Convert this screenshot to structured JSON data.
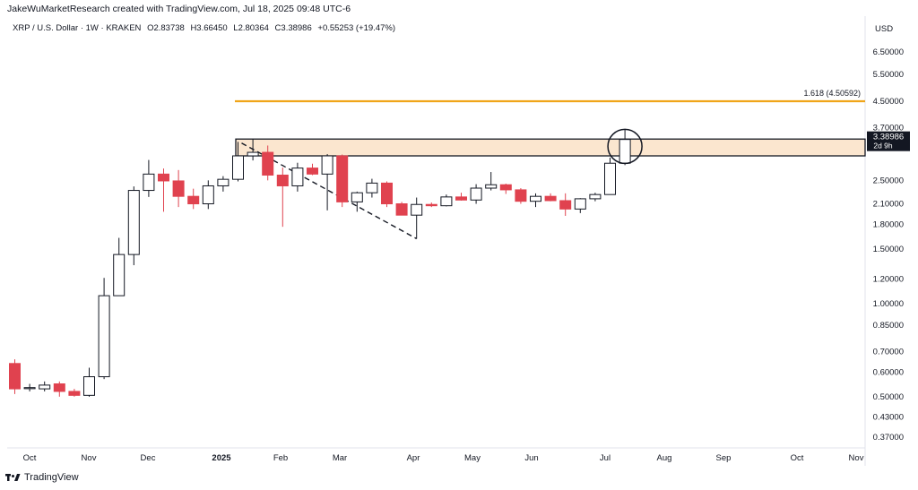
{
  "header": {
    "attribution": "JakeWuMarketResearch created with TradingView.com, Jul 18, 2025 09:48 UTC-6"
  },
  "legend": {
    "symbol": "XRP / U.S. Dollar · 1W · KRAKEN",
    "open": "O2.83738",
    "high": "H3.66450",
    "low": "L2.80364",
    "close": "C3.38986",
    "change": "+0.55253 (+19.47%)"
  },
  "price_axis": {
    "currency": "USD",
    "current_price": "3.38986",
    "countdown": "2d 9h"
  },
  "footer": {
    "brand": "TradingView"
  },
  "colors": {
    "up": "#ffffff",
    "down": "#e0424f",
    "fib_line": "#f0a519",
    "zone_fill": "#fbe6cf"
  },
  "chart_data": {
    "type": "candlestick",
    "symbol": "XRP/USD",
    "interval": "1W",
    "y_scale": "log",
    "ylim": [
      0.33,
      8.2
    ],
    "yticks": [
      "6.50000",
      "5.50000",
      "4.50000",
      "3.70000",
      "2.50000",
      "2.10000",
      "1.80000",
      "1.50000",
      "1.20000",
      "1.00000",
      "0.85000",
      "0.70000",
      "0.60000",
      "0.50000",
      "0.43000",
      "0.37000"
    ],
    "xticks": [
      "Oct",
      "Nov",
      "Dec",
      "2025",
      "Feb",
      "Mar",
      "Apr",
      "May",
      "Jun",
      "Jul",
      "Aug",
      "Sep",
      "Oct",
      "Nov"
    ],
    "candles": [
      {
        "o": 0.64,
        "h": 0.66,
        "l": 0.51,
        "c": 0.53
      },
      {
        "o": 0.535,
        "h": 0.55,
        "l": 0.52,
        "c": 0.535
      },
      {
        "o": 0.53,
        "h": 0.56,
        "l": 0.52,
        "c": 0.545
      },
      {
        "o": 0.55,
        "h": 0.56,
        "l": 0.5,
        "c": 0.52
      },
      {
        "o": 0.52,
        "h": 0.53,
        "l": 0.5,
        "c": 0.505
      },
      {
        "o": 0.505,
        "h": 0.62,
        "l": 0.5,
        "c": 0.58
      },
      {
        "o": 0.58,
        "h": 1.21,
        "l": 0.57,
        "c": 1.06
      },
      {
        "o": 1.06,
        "h": 1.63,
        "l": 1.06,
        "c": 1.44
      },
      {
        "o": 1.44,
        "h": 2.39,
        "l": 1.33,
        "c": 2.32
      },
      {
        "o": 2.32,
        "h": 2.91,
        "l": 2.21,
        "c": 2.62
      },
      {
        "o": 2.62,
        "h": 2.73,
        "l": 1.98,
        "c": 2.49
      },
      {
        "o": 2.49,
        "h": 2.7,
        "l": 2.05,
        "c": 2.22
      },
      {
        "o": 2.22,
        "h": 2.35,
        "l": 2.02,
        "c": 2.1
      },
      {
        "o": 2.1,
        "h": 2.5,
        "l": 2.02,
        "c": 2.4
      },
      {
        "o": 2.4,
        "h": 2.58,
        "l": 2.3,
        "c": 2.52
      },
      {
        "o": 2.52,
        "h": 3.33,
        "l": 2.48,
        "c": 3.0
      },
      {
        "o": 3.0,
        "h": 3.4,
        "l": 2.9,
        "c": 3.08
      },
      {
        "o": 3.08,
        "h": 3.24,
        "l": 2.5,
        "c": 2.6
      },
      {
        "o": 2.6,
        "h": 2.75,
        "l": 1.77,
        "c": 2.4
      },
      {
        "o": 2.4,
        "h": 2.85,
        "l": 2.3,
        "c": 2.74
      },
      {
        "o": 2.74,
        "h": 2.83,
        "l": 2.6,
        "c": 2.62
      },
      {
        "o": 2.62,
        "h": 3.04,
        "l": 2.0,
        "c": 3.0
      },
      {
        "o": 3.0,
        "h": 3.03,
        "l": 2.05,
        "c": 2.13
      },
      {
        "o": 2.13,
        "h": 2.3,
        "l": 1.98,
        "c": 2.28
      },
      {
        "o": 2.28,
        "h": 2.53,
        "l": 2.2,
        "c": 2.45
      },
      {
        "o": 2.45,
        "h": 2.48,
        "l": 2.05,
        "c": 2.1
      },
      {
        "o": 2.1,
        "h": 2.13,
        "l": 1.93,
        "c": 1.93
      },
      {
        "o": 1.93,
        "h": 2.2,
        "l": 1.62,
        "c": 2.09
      },
      {
        "o": 2.09,
        "h": 2.12,
        "l": 2.05,
        "c": 2.07
      },
      {
        "o": 2.07,
        "h": 2.25,
        "l": 2.06,
        "c": 2.21
      },
      {
        "o": 2.21,
        "h": 2.28,
        "l": 2.15,
        "c": 2.16
      },
      {
        "o": 2.16,
        "h": 2.43,
        "l": 2.1,
        "c": 2.36
      },
      {
        "o": 2.36,
        "h": 2.66,
        "l": 2.32,
        "c": 2.42
      },
      {
        "o": 2.42,
        "h": 2.44,
        "l": 2.26,
        "c": 2.33
      },
      {
        "o": 2.33,
        "h": 2.36,
        "l": 2.1,
        "c": 2.14
      },
      {
        "o": 2.14,
        "h": 2.27,
        "l": 2.05,
        "c": 2.22
      },
      {
        "o": 2.22,
        "h": 2.27,
        "l": 2.14,
        "c": 2.15
      },
      {
        "o": 2.15,
        "h": 2.27,
        "l": 1.92,
        "c": 2.02
      },
      {
        "o": 2.02,
        "h": 2.19,
        "l": 1.96,
        "c": 2.18
      },
      {
        "o": 2.18,
        "h": 2.28,
        "l": 2.14,
        "c": 2.25
      },
      {
        "o": 2.25,
        "h": 2.96,
        "l": 2.25,
        "c": 2.84
      },
      {
        "o": 2.84,
        "h": 3.66,
        "l": 2.8,
        "c": 3.39
      }
    ],
    "fib_level": {
      "label": "1.618 (4.50592)",
      "price": 4.50592
    },
    "resistance_zone": {
      "top": 3.4,
      "bottom": 3.0
    },
    "dashed_trendline": [
      {
        "candle": 15,
        "price": 3.3
      },
      {
        "candle": 27,
        "price": 1.62
      }
    ]
  }
}
